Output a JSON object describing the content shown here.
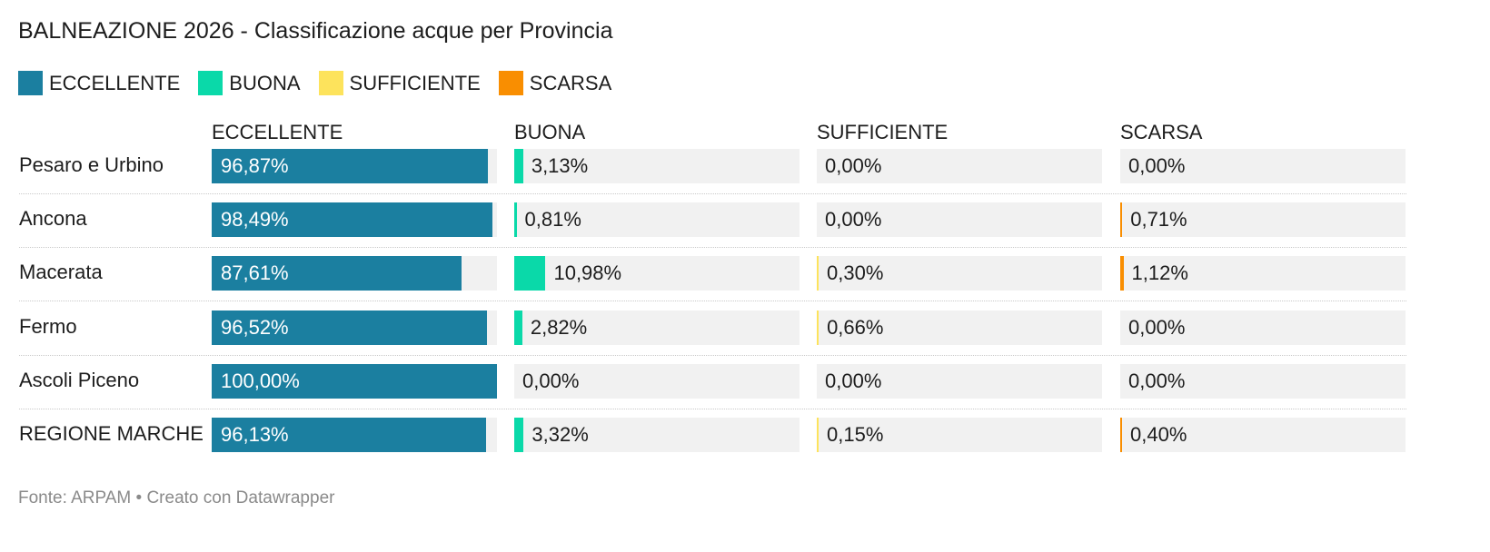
{
  "title": "BALNEAZIONE 2026 - Classificazione acque per Provincia",
  "legend": [
    {
      "label": "ECCELLENTE",
      "color": "#1b7fa0"
    },
    {
      "label": "BUONA",
      "color": "#0ad9a9"
    },
    {
      "label": "SUFFICIENTE",
      "color": "#fde35c"
    },
    {
      "label": "SCARSA",
      "color": "#f98e01"
    }
  ],
  "footer": {
    "source": "Fonte: ARPAM • Creato con Datawrapper"
  },
  "chart_data": {
    "type": "table",
    "title": "BALNEAZIONE 2026 - Classificazione acque per Provincia",
    "columns": [
      "ECCELLENTE",
      "BUONA",
      "SUFFICIENTE",
      "SCARSA"
    ],
    "colors": [
      "#1b7fa0",
      "#0ad9a9",
      "#fde35c",
      "#f98e01"
    ],
    "xlim": [
      0,
      100
    ],
    "rows": [
      {
        "label": "Pesaro e Urbino",
        "values": [
          96.87,
          3.13,
          0.0,
          0.0
        ],
        "labels": [
          "96,87%",
          "3,13%",
          "0,00%",
          "0,00%"
        ]
      },
      {
        "label": "Ancona",
        "values": [
          98.49,
          0.81,
          0.0,
          0.71
        ],
        "labels": [
          "98,49%",
          "0,81%",
          "0,00%",
          "0,71%"
        ]
      },
      {
        "label": "Macerata",
        "values": [
          87.61,
          10.98,
          0.3,
          1.12
        ],
        "labels": [
          "87,61%",
          "10,98%",
          "0,30%",
          "1,12%"
        ]
      },
      {
        "label": "Fermo",
        "values": [
          96.52,
          2.82,
          0.66,
          0.0
        ],
        "labels": [
          "96,52%",
          "2,82%",
          "0,66%",
          "0,00%"
        ]
      },
      {
        "label": "Ascoli Piceno",
        "values": [
          100.0,
          0.0,
          0.0,
          0.0
        ],
        "labels": [
          "100,00%",
          "0,00%",
          "0,00%",
          "0,00%"
        ]
      },
      {
        "label": "REGIONE MARCHE",
        "values": [
          96.13,
          3.32,
          0.15,
          0.4
        ],
        "labels": [
          "96,13%",
          "3,32%",
          "0,15%",
          "0,40%"
        ]
      }
    ]
  }
}
